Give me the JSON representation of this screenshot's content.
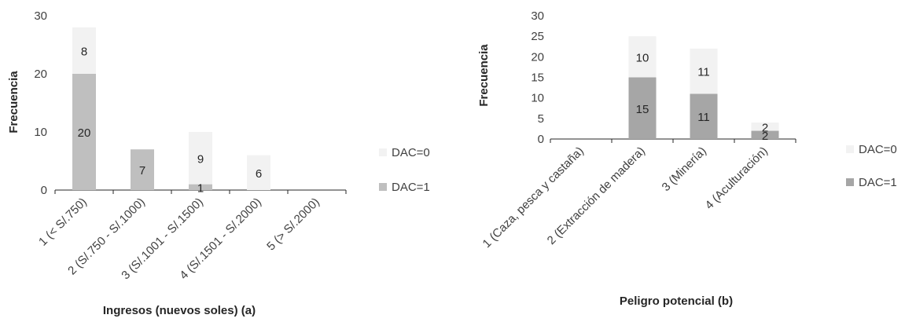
{
  "chart_data": [
    {
      "type": "bar",
      "stacked": true,
      "xlabel": "Ingresos (nuevos soles) (a)",
      "ylabel": "Frecuencia",
      "ylim": [
        0,
        30
      ],
      "yticks": [
        "0",
        "10",
        "20",
        "30"
      ],
      "categories": [
        "1 (< S/.750)",
        "2 (S/.750 - S/.1000)",
        "3 (S/.1001 - S/.1500)",
        "4 (S/.1501 - S/.2000)",
        "5 (> S/.2000)"
      ],
      "series": [
        {
          "name": "DAC=1",
          "values": [
            20,
            7,
            1,
            0,
            0
          ],
          "labels": [
            "20",
            "7",
            "1",
            "",
            ""
          ],
          "color": "#BFBFBF"
        },
        {
          "name": "DAC=0",
          "values": [
            8,
            0,
            9,
            6,
            0
          ],
          "labels": [
            "8",
            "",
            "9",
            "6",
            ""
          ],
          "color": "#F2F2F2"
        }
      ],
      "legend": [
        "DAC=0",
        "DAC=1"
      ],
      "legend_position": "right",
      "grid": false
    },
    {
      "type": "bar",
      "stacked": true,
      "xlabel": "Peligro potencial (b)",
      "ylabel": "Frecuencia",
      "ylim": [
        0,
        30
      ],
      "yticks": [
        "0",
        "5",
        "10",
        "15",
        "20",
        "25",
        "30"
      ],
      "categories": [
        "1 (Caza, pesca y castaña)",
        "2 (Extracción de madera)",
        "3 (Minería)",
        "4 (Aculturación)"
      ],
      "series": [
        {
          "name": "DAC=1",
          "values": [
            0,
            15,
            11,
            2
          ],
          "labels": [
            "",
            "15",
            "11",
            "2"
          ],
          "color": "#A6A6A6"
        },
        {
          "name": "DAC=0",
          "values": [
            0,
            10,
            11,
            2
          ],
          "labels": [
            "",
            "10",
            "11",
            "2"
          ],
          "color": "#F2F2F2"
        }
      ],
      "legend": [
        "DAC=0",
        "DAC=1"
      ],
      "legend_position": "right",
      "grid": false
    }
  ]
}
